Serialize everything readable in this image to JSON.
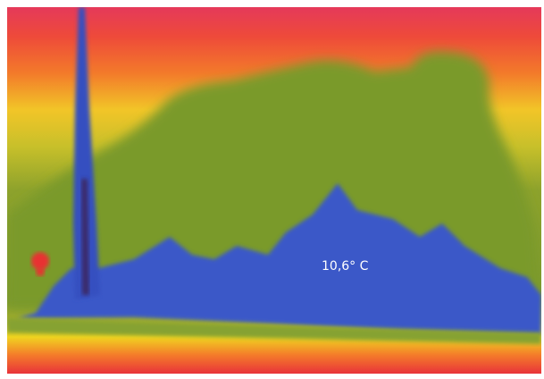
{
  "annotation": "10,6° C"
}
